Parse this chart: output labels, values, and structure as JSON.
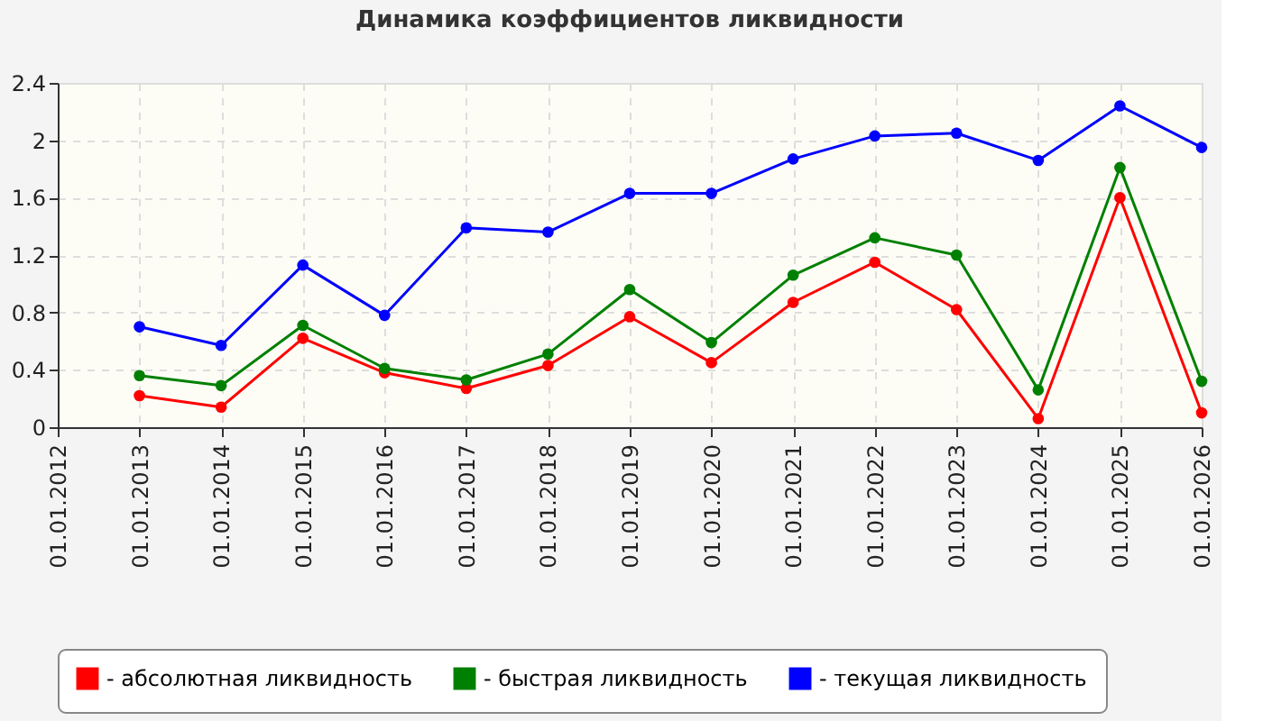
{
  "chart_data": {
    "type": "line",
    "title": "Динамика коэффициентов ликвидности",
    "categories": [
      "01.01.2012",
      "01.01.2013",
      "01.01.2014",
      "01.01.2015",
      "01.01.2016",
      "01.01.2017",
      "01.01.2018",
      "01.01.2019",
      "01.01.2020",
      "01.01.2021",
      "01.01.2022",
      "01.01.2023",
      "01.01.2024",
      "01.01.2025",
      "01.01.2026"
    ],
    "series": [
      {
        "name": "- абсолютная ликвидность",
        "color": "#ff0000",
        "values": [
          null,
          0.22,
          0.14,
          0.62,
          0.38,
          0.27,
          0.43,
          0.77,
          0.45,
          0.87,
          1.15,
          0.82,
          0.06,
          1.6,
          0.1
        ]
      },
      {
        "name": "- быстрая ликвидность",
        "color": "#008000",
        "values": [
          null,
          0.36,
          0.29,
          0.71,
          0.41,
          0.33,
          0.51,
          0.96,
          0.59,
          1.06,
          1.32,
          1.2,
          0.26,
          1.81,
          0.32
        ]
      },
      {
        "name": "- текущая ликвидность",
        "color": "#0000ff",
        "values": [
          null,
          0.7,
          0.57,
          1.13,
          0.78,
          1.39,
          1.36,
          1.63,
          1.63,
          1.87,
          2.03,
          2.05,
          1.86,
          2.24,
          1.95
        ]
      }
    ],
    "ylim": [
      0,
      2.4
    ],
    "yticks": [
      0,
      0.4,
      0.8,
      1.2,
      1.6,
      2,
      2.4
    ],
    "grid": true,
    "legend": "bottom",
    "marker": "circle",
    "line_style": "solid"
  }
}
